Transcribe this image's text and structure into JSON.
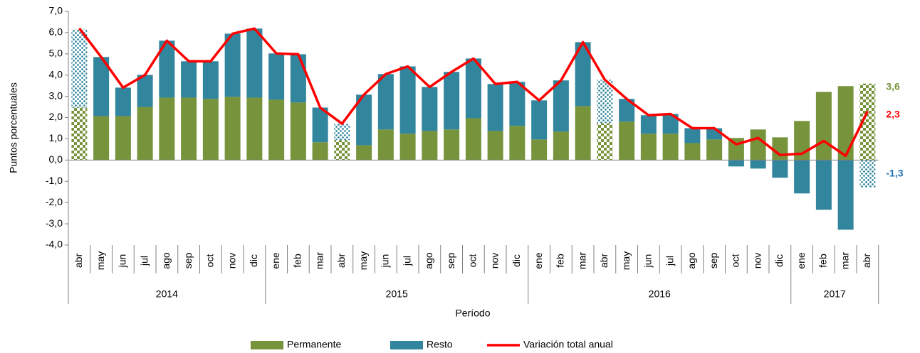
{
  "chart_data": {
    "type": "stacked-bar-line",
    "ylabel": "Puntos porcentuales",
    "xlabel": "Período",
    "categories": [
      "abr",
      "may",
      "jun",
      "jul",
      "ago",
      "sep",
      "oct",
      "nov",
      "dic",
      "ene",
      "feb",
      "mar",
      "abr",
      "may",
      "jun",
      "jul",
      "ago",
      "sep",
      "oct",
      "nov",
      "dic",
      "ene",
      "feb",
      "mar",
      "abr",
      "may",
      "jun",
      "jul",
      "ago",
      "sep",
      "oct",
      "nov",
      "dic",
      "ene",
      "feb",
      "mar",
      "abr"
    ],
    "groups": [
      {
        "label": "2014",
        "count": 9
      },
      {
        "label": "2015",
        "count": 12
      },
      {
        "label": "2016",
        "count": 12
      },
      {
        "label": "2017",
        "count": 4
      }
    ],
    "patterned": [
      0,
      12,
      24,
      36
    ],
    "series": [
      {
        "name": "Permanente",
        "kind": "bar",
        "color": "#77933c",
        "values": [
          2.47,
          2.07,
          2.07,
          2.5,
          2.94,
          2.94,
          2.88,
          2.98,
          2.94,
          2.84,
          2.71,
          0.84,
          0.94,
          0.7,
          1.44,
          1.24,
          1.37,
          1.44,
          1.97,
          1.37,
          1.61,
          0.97,
          1.34,
          2.54,
          1.74,
          1.81,
          1.24,
          1.24,
          0.8,
          0.97,
          1.04,
          1.44,
          1.07,
          1.84,
          3.21,
          3.48,
          3.6
        ],
        "value_labels": [
          null,
          null,
          null,
          null,
          null,
          null,
          null,
          null,
          null,
          null,
          null,
          null,
          null,
          null,
          null,
          null,
          null,
          null,
          null,
          null,
          null,
          null,
          null,
          null,
          null,
          null,
          null,
          null,
          null,
          null,
          null,
          null,
          null,
          null,
          null,
          null,
          "3,6"
        ]
      },
      {
        "name": "Resto",
        "kind": "bar",
        "color": "#31859c",
        "label_color": "#1f6fb5",
        "values": [
          3.68,
          2.78,
          1.34,
          1.51,
          2.68,
          1.71,
          1.77,
          2.97,
          3.25,
          2.18,
          2.27,
          1.63,
          0.77,
          2.38,
          2.61,
          3.17,
          2.07,
          2.71,
          2.81,
          2.21,
          2.07,
          1.84,
          2.41,
          3.01,
          2.04,
          1.07,
          0.87,
          0.93,
          0.7,
          0.53,
          -0.3,
          -0.4,
          -0.83,
          -1.57,
          -2.34,
          -3.28,
          -1.3
        ],
        "value_labels": [
          null,
          null,
          null,
          null,
          null,
          null,
          null,
          null,
          null,
          null,
          null,
          null,
          null,
          null,
          null,
          null,
          null,
          null,
          null,
          null,
          null,
          null,
          null,
          null,
          null,
          null,
          null,
          null,
          null,
          null,
          null,
          null,
          null,
          null,
          null,
          null,
          "-1,3"
        ]
      },
      {
        "name": "Variación total anual",
        "kind": "line",
        "color": "#ff0000",
        "values": [
          6.2,
          4.85,
          3.41,
          4.01,
          5.62,
          4.65,
          4.65,
          5.95,
          6.19,
          5.02,
          4.98,
          2.47,
          1.71,
          3.08,
          4.05,
          4.41,
          3.44,
          4.15,
          4.78,
          3.58,
          3.68,
          2.81,
          3.75,
          5.55,
          3.78,
          2.88,
          2.11,
          2.17,
          1.5,
          1.5,
          0.74,
          1.04,
          0.24,
          0.3,
          0.9,
          0.2,
          2.3
        ],
        "value_labels": [
          null,
          null,
          null,
          null,
          null,
          null,
          null,
          null,
          null,
          null,
          null,
          null,
          null,
          null,
          null,
          null,
          null,
          null,
          null,
          null,
          null,
          null,
          null,
          null,
          null,
          null,
          null,
          null,
          null,
          null,
          null,
          null,
          null,
          null,
          null,
          null,
          "2,3"
        ]
      }
    ],
    "ylim": [
      -4,
      7
    ],
    "yticks": [
      {
        "value": -4,
        "label": "-4,0"
      },
      {
        "value": -3,
        "label": "-3,0"
      },
      {
        "value": -2,
        "label": "-2,0"
      },
      {
        "value": -1,
        "label": "-1,0"
      },
      {
        "value": 0,
        "label": "0,0"
      },
      {
        "value": 1,
        "label": "1,0"
      },
      {
        "value": 2,
        "label": "2,0"
      },
      {
        "value": 3,
        "label": "3,0"
      },
      {
        "value": 4,
        "label": "4,0"
      },
      {
        "value": 5,
        "label": "5,0"
      },
      {
        "value": 6,
        "label": "6,0"
      },
      {
        "value": 7,
        "label": "7,0"
      }
    ],
    "grid": false
  }
}
